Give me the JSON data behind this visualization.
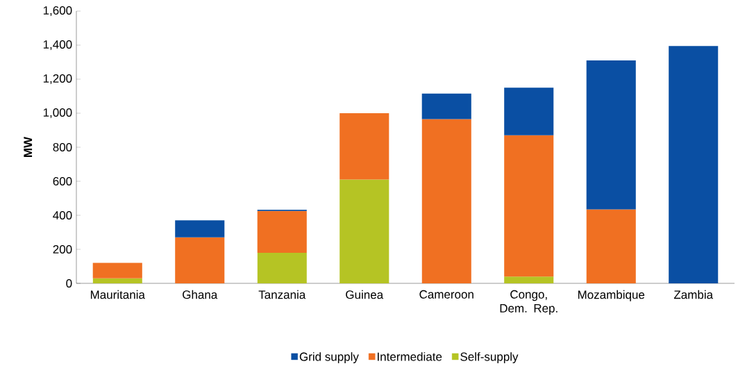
{
  "chart_data": {
    "type": "bar",
    "stacked": true,
    "ylabel": "MW",
    "categories": [
      "Mauritania",
      "Ghana",
      "Tanzania",
      "Guinea",
      "Cameroon",
      "Congo, Dem. Rep.",
      "Mozambique",
      "Zambia"
    ],
    "series": [
      {
        "name": "Self-supply",
        "color": "#b5c424",
        "values": [
          30,
          null,
          180,
          610,
          null,
          40,
          null,
          null
        ]
      },
      {
        "name": "Intermediate",
        "color": "#f07022",
        "values": [
          90,
          270,
          245,
          390,
          965,
          830,
          435,
          null
        ]
      },
      {
        "name": "Grid supply",
        "color": "#0a4fa3",
        "values": [
          null,
          100,
          8,
          null,
          150,
          280,
          875,
          1395
        ]
      }
    ],
    "ylim": [
      0,
      1600
    ],
    "yticks": [
      0,
      200,
      400,
      600,
      800,
      {
        "value": 1000,
        "label": "1,000"
      },
      {
        "value": 1200,
        "label": "1,200"
      },
      {
        "value": 1400,
        "label": "1,400"
      },
      {
        "value": 1600,
        "label": "1,600"
      }
    ],
    "grid": false,
    "legend": "bottom"
  }
}
